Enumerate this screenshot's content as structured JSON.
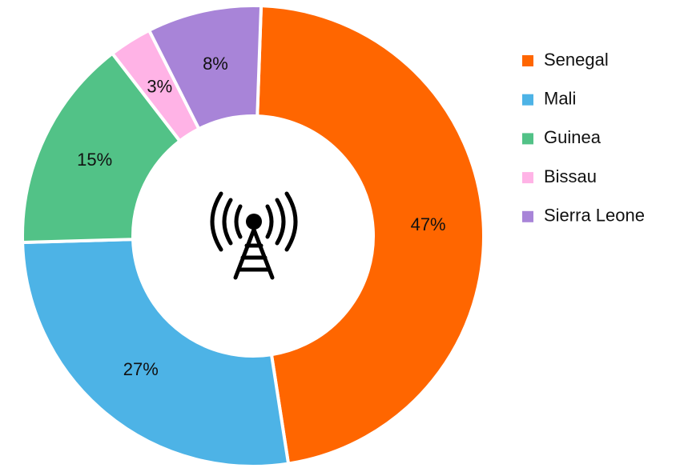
{
  "chart_data": {
    "type": "donut",
    "categories": [
      "Senegal",
      "Mali",
      "Guinea",
      "Bissau",
      "Sierra Leone"
    ],
    "values": [
      47,
      27,
      15,
      3,
      8
    ],
    "value_labels": [
      "47%",
      "27%",
      "15%",
      "3%",
      "8%"
    ],
    "colors": [
      "#ff6600",
      "#4db3e6",
      "#52c287",
      "#ffb3e6",
      "#a884d8"
    ],
    "legend": "right"
  }
}
